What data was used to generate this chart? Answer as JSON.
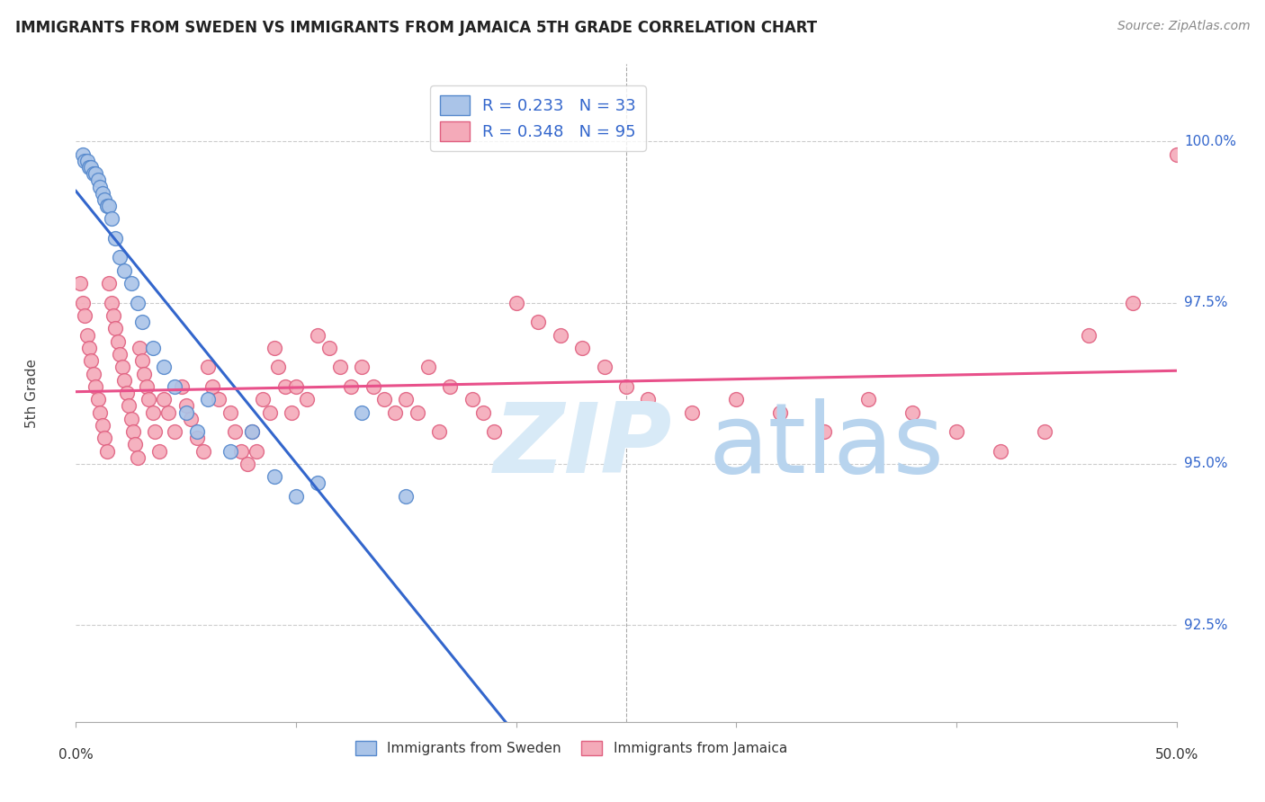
{
  "title": "IMMIGRANTS FROM SWEDEN VS IMMIGRANTS FROM JAMAICA 5TH GRADE CORRELATION CHART",
  "source": "Source: ZipAtlas.com",
  "ylabel": "5th Grade",
  "x_min": 0.0,
  "x_max": 50.0,
  "y_min": 91.0,
  "y_max": 101.2,
  "y_ticks": [
    92.5,
    95.0,
    97.5,
    100.0
  ],
  "sweden_R": 0.233,
  "sweden_N": 33,
  "jamaica_R": 0.348,
  "jamaica_N": 95,
  "sweden_color": "#aac4e8",
  "sweden_edge": "#5588cc",
  "jamaica_color": "#f4aab9",
  "jamaica_edge": "#e06080",
  "sweden_line_color": "#3366cc",
  "jamaica_line_color": "#e8508a",
  "sweden_x": [
    0.3,
    0.4,
    0.5,
    0.6,
    0.7,
    0.8,
    0.9,
    1.0,
    1.1,
    1.2,
    1.3,
    1.4,
    1.5,
    1.6,
    1.8,
    2.0,
    2.2,
    2.5,
    2.8,
    3.0,
    3.5,
    4.0,
    4.5,
    5.0,
    5.5,
    6.0,
    7.0,
    8.0,
    9.0,
    10.0,
    11.0,
    13.0,
    15.0
  ],
  "sweden_y": [
    99.8,
    99.7,
    99.7,
    99.6,
    99.6,
    99.5,
    99.5,
    99.4,
    99.3,
    99.2,
    99.1,
    99.0,
    99.0,
    98.8,
    98.5,
    98.2,
    98.0,
    97.8,
    97.5,
    97.2,
    96.8,
    96.5,
    96.2,
    95.8,
    95.5,
    96.0,
    95.2,
    95.5,
    94.8,
    94.5,
    94.7,
    95.8,
    94.5
  ],
  "jamaica_x": [
    0.2,
    0.3,
    0.4,
    0.5,
    0.6,
    0.7,
    0.8,
    0.9,
    1.0,
    1.1,
    1.2,
    1.3,
    1.4,
    1.5,
    1.6,
    1.7,
    1.8,
    1.9,
    2.0,
    2.1,
    2.2,
    2.3,
    2.4,
    2.5,
    2.6,
    2.7,
    2.8,
    2.9,
    3.0,
    3.1,
    3.2,
    3.3,
    3.5,
    3.6,
    3.8,
    4.0,
    4.2,
    4.5,
    4.8,
    5.0,
    5.2,
    5.5,
    5.8,
    6.0,
    6.2,
    6.5,
    7.0,
    7.2,
    7.5,
    7.8,
    8.0,
    8.2,
    8.5,
    8.8,
    9.0,
    9.2,
    9.5,
    9.8,
    10.0,
    10.5,
    11.0,
    11.5,
    12.0,
    12.5,
    13.0,
    13.5,
    14.0,
    14.5,
    15.0,
    15.5,
    16.0,
    16.5,
    17.0,
    18.0,
    18.5,
    19.0,
    20.0,
    21.0,
    22.0,
    23.0,
    24.0,
    25.0,
    26.0,
    28.0,
    30.0,
    32.0,
    34.0,
    36.0,
    38.0,
    40.0,
    42.0,
    44.0,
    46.0,
    48.0,
    50.0
  ],
  "jamaica_y": [
    97.8,
    97.5,
    97.3,
    97.0,
    96.8,
    96.6,
    96.4,
    96.2,
    96.0,
    95.8,
    95.6,
    95.4,
    95.2,
    97.8,
    97.5,
    97.3,
    97.1,
    96.9,
    96.7,
    96.5,
    96.3,
    96.1,
    95.9,
    95.7,
    95.5,
    95.3,
    95.1,
    96.8,
    96.6,
    96.4,
    96.2,
    96.0,
    95.8,
    95.5,
    95.2,
    96.0,
    95.8,
    95.5,
    96.2,
    95.9,
    95.7,
    95.4,
    95.2,
    96.5,
    96.2,
    96.0,
    95.8,
    95.5,
    95.2,
    95.0,
    95.5,
    95.2,
    96.0,
    95.8,
    96.8,
    96.5,
    96.2,
    95.8,
    96.2,
    96.0,
    97.0,
    96.8,
    96.5,
    96.2,
    96.5,
    96.2,
    96.0,
    95.8,
    96.0,
    95.8,
    96.5,
    95.5,
    96.2,
    96.0,
    95.8,
    95.5,
    97.5,
    97.2,
    97.0,
    96.8,
    96.5,
    96.2,
    96.0,
    95.8,
    96.0,
    95.8,
    95.5,
    96.0,
    95.8,
    95.5,
    95.2,
    95.5,
    97.0,
    97.5,
    99.8
  ]
}
